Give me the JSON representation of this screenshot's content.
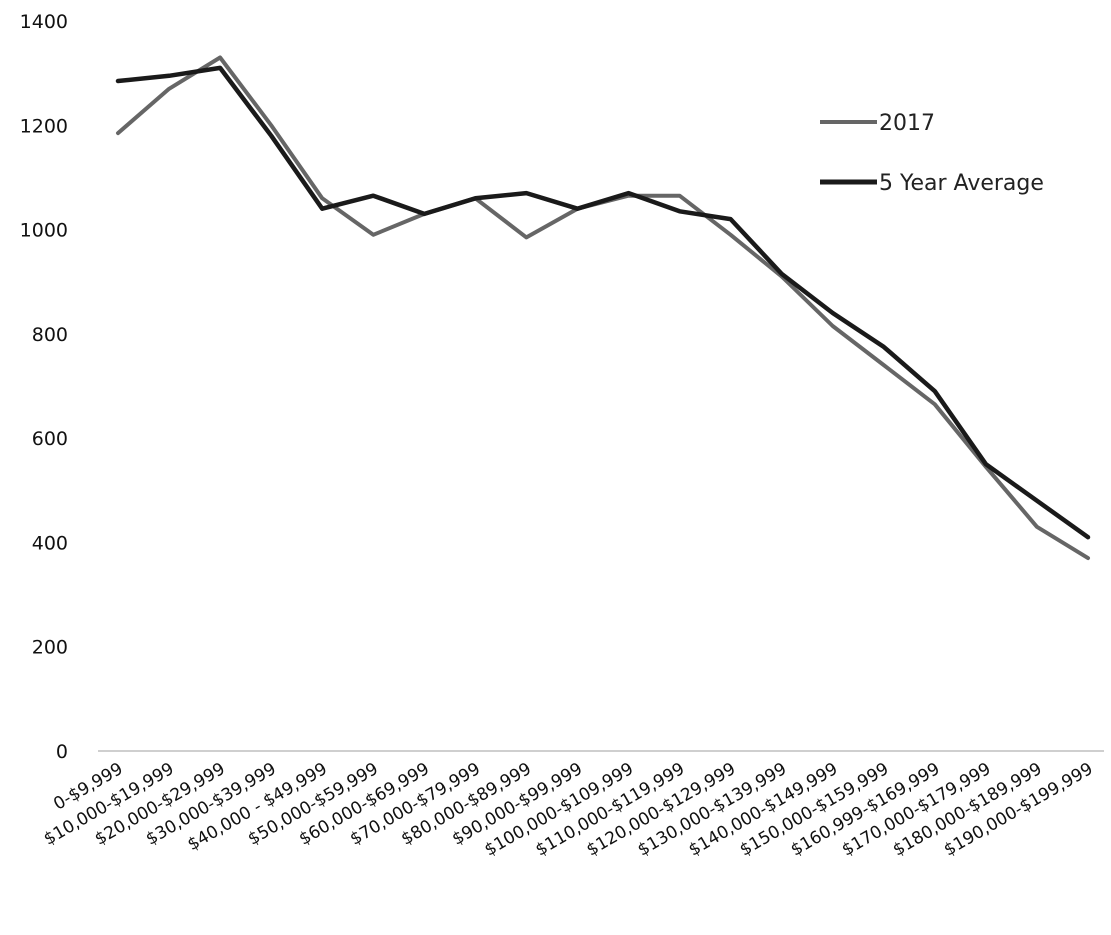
{
  "chart_data": {
    "type": "line",
    "categories": [
      "0-$9,999",
      "$10,000-$19,999",
      "$20,000-$29,999",
      "$30,000-$39,999",
      "$40,000 - $49,999",
      "$50,000-$59,999",
      "$60,000-$69,999",
      "$70,000-$79,999",
      "$80,000-$89,999",
      "$90,000-$99,999",
      "$100,000-$109,999",
      "$110,000-$119,999",
      "$120,000-$129,999",
      "$130,000-$139,999",
      "$140,000-$149,999",
      "$150,000-$159,999",
      "$160,999-$169,999",
      "$170,000-$179,999",
      "$180,000-$189,999",
      "$190,000-$199,999"
    ],
    "series": [
      {
        "name": "2017",
        "color": "#666666",
        "values": [
          1185,
          1270,
          1330,
          1200,
          1060,
          990,
          1030,
          1060,
          985,
          1040,
          1065,
          1065,
          990,
          910,
          815,
          740,
          665,
          545,
          430,
          370
        ]
      },
      {
        "name": "5 Year Average",
        "color": "#1a1a1a",
        "values": [
          1285,
          1295,
          1310,
          1180,
          1040,
          1065,
          1030,
          1060,
          1070,
          1040,
          1070,
          1035,
          1020,
          915,
          840,
          775,
          690,
          550,
          480,
          410
        ]
      }
    ],
    "yticks": [
      0,
      200,
      400,
      600,
      800,
      1000,
      1200,
      1400
    ],
    "ylim": [
      0,
      1400
    ],
    "title": "",
    "xlabel": "",
    "ylabel": "",
    "grid": false,
    "legend_position": "top-right"
  }
}
